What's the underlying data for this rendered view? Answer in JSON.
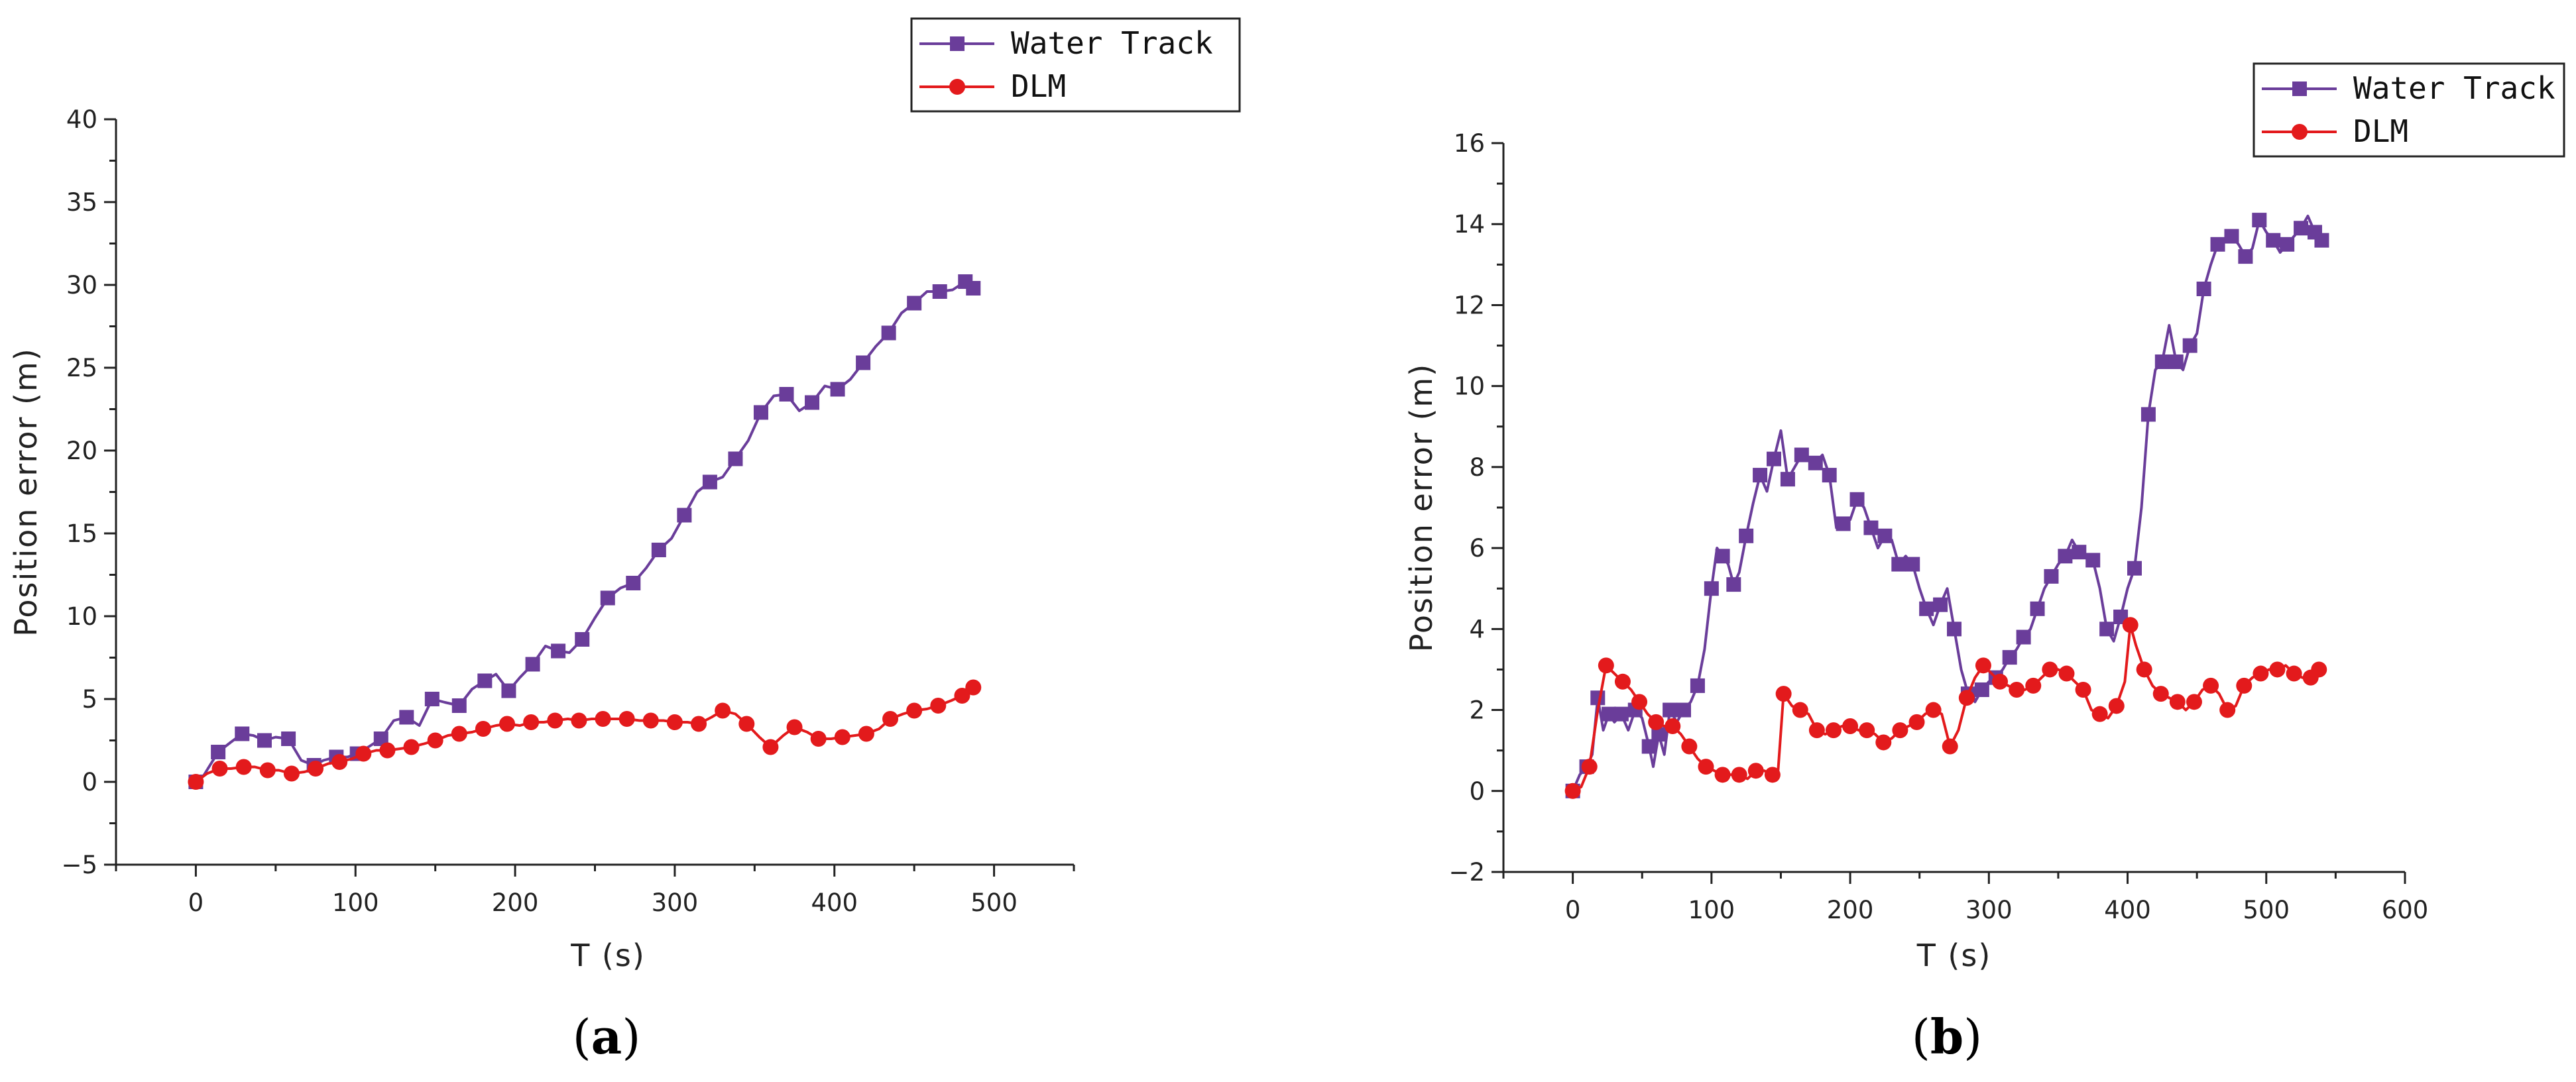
{
  "chart_data": [
    {
      "type": "line",
      "panel_label": "(a)",
      "caption": {
        "open": "(",
        "letter": "a",
        "close": ")"
      },
      "xlabel": "T (s)",
      "ylabel": "Position error (m)",
      "xlim": [
        -50,
        550
      ],
      "ylim": [
        -5,
        40
      ],
      "xticks": [
        0,
        100,
        200,
        300,
        400,
        500
      ],
      "yticks": [
        -5,
        0,
        5,
        10,
        15,
        20,
        25,
        30,
        35,
        40
      ],
      "grid": false,
      "legend_position": "top-right",
      "series": [
        {
          "name": "Water Track",
          "color": "#6a3d9a",
          "marker": "square",
          "x": [
            0,
            5,
            14,
            22,
            29,
            36,
            43,
            50,
            58,
            66,
            74,
            80,
            88,
            95,
            101,
            108,
            116,
            124,
            132,
            140,
            148,
            156,
            165,
            173,
            181,
            188,
            196,
            203,
            211,
            219,
            227,
            234,
            242,
            250,
            258,
            266,
            274,
            282,
            290,
            298,
            306,
            314,
            322,
            330,
            338,
            346,
            354,
            362,
            370,
            378,
            386,
            394,
            402,
            410,
            418,
            426,
            434,
            442,
            450,
            458,
            466,
            474,
            482,
            487
          ],
          "y": [
            0.0,
            0.4,
            1.8,
            2.4,
            2.9,
            2.8,
            2.5,
            2.7,
            2.6,
            1.3,
            1.0,
            1.3,
            1.5,
            1.5,
            1.7,
            2.1,
            2.6,
            3.7,
            3.9,
            3.4,
            5.0,
            4.8,
            4.6,
            5.6,
            6.1,
            6.5,
            5.5,
            6.3,
            7.1,
            8.2,
            7.9,
            7.8,
            8.6,
            9.9,
            11.1,
            11.7,
            12.0,
            12.9,
            14.0,
            14.7,
            16.1,
            17.5,
            18.1,
            18.4,
            19.5,
            20.6,
            22.3,
            23.3,
            23.4,
            22.4,
            22.9,
            23.9,
            23.7,
            24.3,
            25.3,
            26.3,
            27.1,
            28.3,
            28.9,
            29.6,
            29.6,
            29.7,
            30.2,
            29.8
          ]
        },
        {
          "name": "DLM",
          "color": "#e31a1c",
          "marker": "circle",
          "x": [
            0,
            7,
            15,
            22,
            30,
            37,
            45,
            52,
            60,
            68,
            75,
            83,
            90,
            98,
            105,
            113,
            120,
            128,
            135,
            143,
            150,
            158,
            165,
            173,
            180,
            188,
            195,
            203,
            210,
            218,
            225,
            233,
            240,
            248,
            255,
            263,
            270,
            278,
            285,
            293,
            300,
            308,
            315,
            323,
            330,
            338,
            345,
            353,
            360,
            368,
            375,
            383,
            390,
            398,
            405,
            413,
            420,
            428,
            435,
            443,
            450,
            458,
            465,
            473,
            480,
            487
          ],
          "y": [
            0.0,
            0.5,
            0.8,
            0.8,
            0.9,
            0.9,
            0.7,
            0.7,
            0.5,
            0.6,
            0.8,
            1.1,
            1.2,
            1.4,
            1.7,
            1.9,
            1.9,
            2.0,
            2.1,
            2.3,
            2.5,
            2.8,
            2.9,
            3.0,
            3.2,
            3.4,
            3.5,
            3.4,
            3.6,
            3.6,
            3.7,
            3.8,
            3.7,
            3.8,
            3.8,
            3.8,
            3.8,
            3.7,
            3.7,
            3.7,
            3.6,
            3.6,
            3.5,
            3.9,
            4.3,
            4.1,
            3.5,
            2.7,
            2.1,
            2.8,
            3.3,
            3.0,
            2.6,
            2.6,
            2.7,
            2.8,
            2.9,
            3.2,
            3.8,
            4.1,
            4.3,
            4.4,
            4.6,
            4.9,
            5.2,
            5.7
          ]
        }
      ]
    },
    {
      "type": "line",
      "panel_label": "(b)",
      "caption": {
        "open": "(",
        "letter": "b",
        "close": ")"
      },
      "xlabel": "T (s)",
      "ylabel": "Position error (m)",
      "xlim": [
        -50,
        600
      ],
      "ylim": [
        -2,
        16
      ],
      "xticks": [
        0,
        100,
        200,
        300,
        400,
        500,
        600
      ],
      "yticks": [
        -2,
        0,
        2,
        4,
        6,
        8,
        10,
        12,
        14,
        16
      ],
      "grid": false,
      "legend_position": "top-right",
      "series": [
        {
          "name": "Water Track",
          "color": "#6a3d9a",
          "marker": "square",
          "x": [
            0,
            5,
            10,
            14,
            18,
            22,
            26,
            30,
            35,
            40,
            45,
            50,
            55,
            58,
            62,
            66,
            70,
            75,
            80,
            85,
            90,
            95,
            100,
            104,
            108,
            112,
            116,
            120,
            125,
            130,
            135,
            140,
            145,
            150,
            155,
            160,
            165,
            170,
            175,
            180,
            185,
            190,
            195,
            200,
            205,
            210,
            215,
            220,
            225,
            230,
            235,
            240,
            245,
            250,
            255,
            260,
            265,
            270,
            275,
            280,
            285,
            290,
            295,
            300,
            305,
            310,
            315,
            320,
            325,
            330,
            335,
            340,
            345,
            350,
            355,
            360,
            365,
            370,
            375,
            380,
            385,
            390,
            395,
            400,
            405,
            410,
            415,
            420,
            425,
            430,
            435,
            440,
            445,
            450,
            455,
            460,
            465,
            470,
            475,
            480,
            485,
            490,
            495,
            500,
            505,
            510,
            515,
            520,
            525,
            530,
            535,
            540
          ],
          "y": [
            0.0,
            0.4,
            0.6,
            0.9,
            2.3,
            1.5,
            1.9,
            1.7,
            1.9,
            1.5,
            2.0,
            1.8,
            1.1,
            0.6,
            1.4,
            0.9,
            2.0,
            1.7,
            2.0,
            2.2,
            2.6,
            3.5,
            5.0,
            6.0,
            5.8,
            5.6,
            5.1,
            5.4,
            6.3,
            7.1,
            7.8,
            7.4,
            8.2,
            8.9,
            7.7,
            8.0,
            8.3,
            8.2,
            8.1,
            8.3,
            7.8,
            6.5,
            6.6,
            6.7,
            7.2,
            7.0,
            6.5,
            6.0,
            6.3,
            6.2,
            5.6,
            5.8,
            5.6,
            5.0,
            4.5,
            4.1,
            4.6,
            5.0,
            4.0,
            3.0,
            2.4,
            2.2,
            2.5,
            2.7,
            2.8,
            3.0,
            3.3,
            3.5,
            3.8,
            4.0,
            4.5,
            5.0,
            5.3,
            5.6,
            5.8,
            6.2,
            5.9,
            5.8,
            5.7,
            5.0,
            4.0,
            3.7,
            4.3,
            5.0,
            5.5,
            7.0,
            9.3,
            10.4,
            10.6,
            11.5,
            10.6,
            10.4,
            11.0,
            11.3,
            12.4,
            13.0,
            13.5,
            13.6,
            13.7,
            13.5,
            13.2,
            13.4,
            14.1,
            13.8,
            13.6,
            13.3,
            13.5,
            13.7,
            13.9,
            14.2,
            13.8,
            13.6
          ]
        },
        {
          "name": "DLM",
          "color": "#e31a1c",
          "marker": "circle",
          "x": [
            0,
            6,
            12,
            18,
            24,
            30,
            36,
            42,
            48,
            54,
            60,
            66,
            72,
            78,
            84,
            90,
            96,
            102,
            108,
            114,
            120,
            126,
            132,
            138,
            144,
            148,
            152,
            158,
            164,
            170,
            176,
            182,
            188,
            194,
            200,
            206,
            212,
            218,
            224,
            230,
            236,
            242,
            248,
            254,
            260,
            266,
            272,
            278,
            284,
            290,
            296,
            302,
            308,
            314,
            320,
            326,
            332,
            338,
            344,
            350,
            356,
            362,
            368,
            374,
            380,
            386,
            392,
            398,
            402,
            406,
            412,
            418,
            424,
            430,
            436,
            442,
            448,
            454,
            460,
            466,
            472,
            478,
            484,
            490,
            496,
            502,
            508,
            514,
            520,
            526,
            532,
            538
          ],
          "y": [
            0.0,
            0.1,
            0.6,
            2.0,
            3.1,
            2.9,
            2.7,
            2.5,
            2.2,
            1.9,
            1.7,
            1.6,
            1.6,
            1.4,
            1.1,
            0.8,
            0.6,
            0.5,
            0.4,
            0.4,
            0.4,
            0.3,
            0.5,
            0.5,
            0.4,
            0.5,
            2.4,
            2.1,
            2.0,
            1.9,
            1.5,
            1.4,
            1.5,
            1.6,
            1.6,
            1.5,
            1.5,
            1.4,
            1.2,
            1.3,
            1.5,
            1.6,
            1.7,
            1.9,
            2.0,
            1.9,
            1.1,
            1.5,
            2.3,
            2.8,
            3.1,
            2.9,
            2.7,
            2.6,
            2.5,
            2.5,
            2.6,
            2.8,
            3.0,
            3.0,
            2.9,
            2.7,
            2.5,
            2.0,
            1.9,
            1.8,
            2.1,
            2.7,
            4.1,
            3.6,
            3.0,
            2.6,
            2.4,
            2.3,
            2.2,
            2.0,
            2.2,
            2.5,
            2.6,
            2.4,
            2.0,
            2.1,
            2.6,
            2.8,
            2.9,
            3.0,
            3.0,
            3.1,
            2.9,
            2.8,
            2.8,
            3.0
          ]
        }
      ]
    }
  ]
}
